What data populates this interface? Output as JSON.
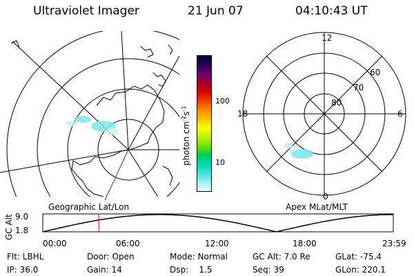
{
  "header": {
    "instrument": "Ultraviolet Imager",
    "date": "21 Jun 07",
    "time": "04:10:43 UT"
  },
  "left_map": {
    "label": "Geographic Lat/Lon"
  },
  "right_map": {
    "label": "Apex MLat/MLT",
    "mlt_labels": {
      "top": "12",
      "left": "18",
      "right": "6",
      "bottom": "0"
    },
    "lat_labels": [
      "60",
      "70",
      "80"
    ]
  },
  "colorbar": {
    "unit_label": "photon cm",
    "unit_sup1": "-2",
    "unit_s": "s",
    "unit_sup2": "-1",
    "ticks": [
      "100",
      "10"
    ],
    "colors": [
      "#000030",
      "#2a005a",
      "#6a0078",
      "#a00028",
      "#d80000",
      "#f04000",
      "#ff8c00",
      "#ffc000",
      "#ffff00",
      "#c0f000",
      "#70e000",
      "#00d050",
      "#00d8b0",
      "#40e0e0",
      "#a0f0f0",
      "#e0ffff"
    ]
  },
  "orbit_plot": {
    "y_title": "GC Alt",
    "y_ticks": [
      "9.0",
      "1.8"
    ],
    "x_ticks": [
      "00:00",
      "06:00",
      "12:00",
      "18:00",
      "23:59"
    ],
    "current_time_fraction": 0.16
  },
  "footer": {
    "row1": [
      "Flt: LBHL",
      "Door: Open",
      "Mode: Normal",
      "GC Alt: 7.0 Re",
      "GLat: -75.4"
    ],
    "row2": [
      "IP: 36.0",
      "Gain: 14",
      "Dsp:    1.5",
      "Seq: 39",
      "GLon: 220.1"
    ]
  }
}
